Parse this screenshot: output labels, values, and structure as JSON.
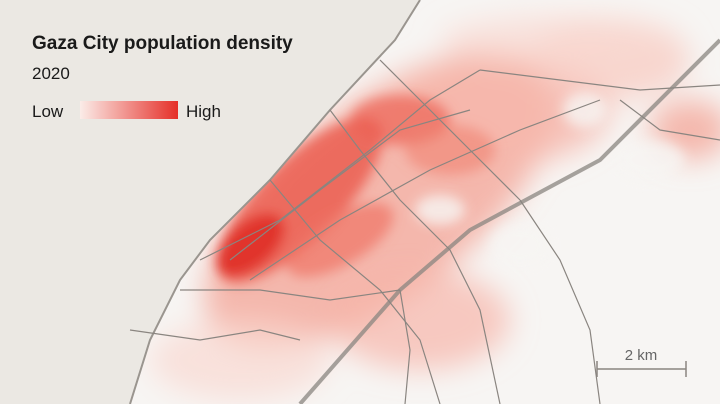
{
  "title": "Gaza City population density",
  "subtitle": "2020",
  "legend": {
    "low": "Low",
    "high": "High"
  },
  "scale_bar": "2 km"
}
